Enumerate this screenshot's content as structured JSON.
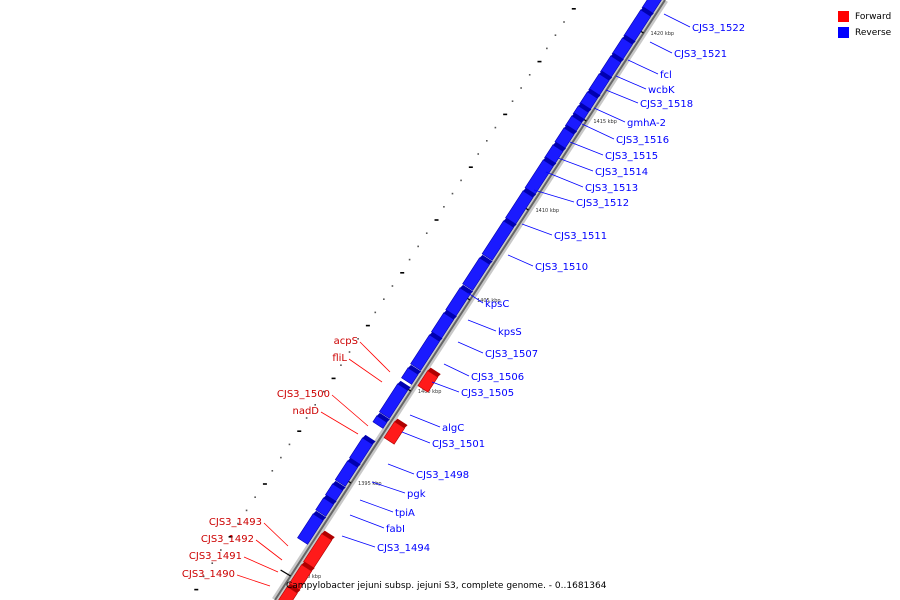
{
  "caption": "Campylobacter jejuni subsp. jejuni S3, complete genome. - 0..1681364",
  "legend": [
    {
      "label": "Forward",
      "color": "#ff0000"
    },
    {
      "label": "Reverse",
      "color": "#0000ff"
    }
  ],
  "tick_labels": [
    "1420 kbp",
    "1415 kbp",
    "1410 kbp",
    "1405 kbp",
    "1400 kbp",
    "1395 kbp",
    "1390 kbp"
  ],
  "genes_reverse": [
    "CJS3_1522",
    "CJS3_1521",
    "fcl",
    "wcbK",
    "CJS3_1518",
    "gmhA-2",
    "CJS3_1516",
    "CJS3_1515",
    "CJS3_1514",
    "CJS3_1513",
    "CJS3_1512",
    "CJS3_1511",
    "CJS3_1510",
    "kpsC",
    "kpsS",
    "CJS3_1507",
    "CJS3_1506",
    "CJS3_1505",
    "algC",
    "CJS3_1501",
    "CJS3_1498",
    "pgk",
    "tpiA",
    "fabI",
    "CJS3_1494"
  ],
  "genes_forward": [
    "acpS",
    "fliL",
    "CJS3_1500",
    "nadD",
    "CJS3_1493",
    "CJS3_1492",
    "CJS3_1491",
    "CJS3_1490"
  ]
}
